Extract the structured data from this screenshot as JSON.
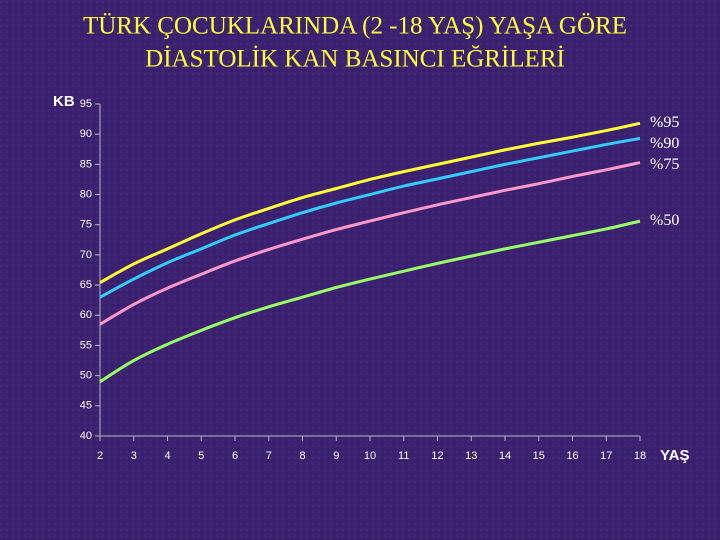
{
  "chart_data": {
    "type": "line",
    "title": [
      "TÜRK ÇOCUKLARINDA (2 -18 YAŞ) YAŞA GÖRE",
      "DİASTOLİK KAN BASINCI EĞRİLERİ"
    ],
    "y_label": "KB",
    "x_label": "YAŞ",
    "x": [
      2,
      3,
      4,
      5,
      6,
      7,
      8,
      9,
      10,
      11,
      12,
      13,
      14,
      15,
      16,
      17,
      18
    ],
    "xlim": [
      2,
      18
    ],
    "xticks": [
      2,
      3,
      4,
      5,
      6,
      7,
      8,
      9,
      10,
      11,
      12,
      13,
      14,
      15,
      16,
      17,
      18
    ],
    "ylim": [
      40,
      95
    ],
    "yticks": [
      40,
      45,
      50,
      55,
      60,
      65,
      70,
      75,
      80,
      85,
      90,
      95
    ],
    "series": [
      {
        "name": "%95",
        "color": "#ffff33",
        "values": [
          65.4,
          68.5,
          71,
          73.5,
          75.8,
          77.7,
          79.5,
          81,
          82.5,
          83.8,
          85,
          86.2,
          87.4,
          88.5,
          89.5,
          90.6,
          91.8
        ]
      },
      {
        "name": "%90",
        "color": "#33ccff",
        "values": [
          63,
          66,
          68.7,
          71,
          73.3,
          75.2,
          77,
          78.6,
          80,
          81.4,
          82.6,
          83.8,
          85,
          86.1,
          87.2,
          88.3,
          89.3
        ]
      },
      {
        "name": "%75",
        "color": "#ff99cc",
        "values": [
          58.5,
          61.8,
          64.5,
          66.8,
          69,
          70.9,
          72.6,
          74.2,
          75.6,
          77,
          78.3,
          79.5,
          80.7,
          81.8,
          83,
          84.1,
          85.3
        ]
      },
      {
        "name": "%50",
        "color": "#99ff66",
        "values": [
          49,
          52.5,
          55.2,
          57.5,
          59.6,
          61.4,
          63,
          64.6,
          66,
          67.3,
          68.6,
          69.8,
          71,
          72.1,
          73.2,
          74.3,
          75.6
        ]
      }
    ]
  }
}
